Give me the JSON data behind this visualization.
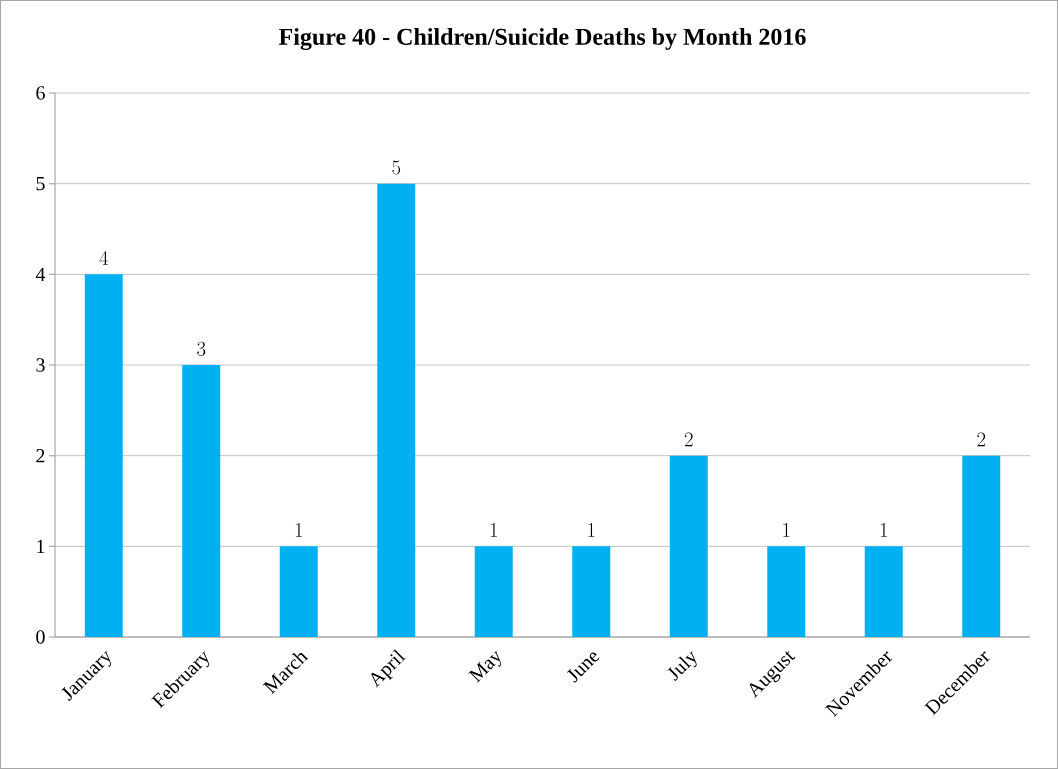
{
  "chart_data": {
    "type": "bar",
    "title": "Figure 40 - Children/Suicide Deaths by Month 2016",
    "categories": [
      "January",
      "February",
      "March",
      "April",
      "May",
      "June",
      "July",
      "August",
      "November",
      "December"
    ],
    "values": [
      4,
      3,
      1,
      5,
      1,
      1,
      2,
      1,
      1,
      2
    ],
    "color": "#00b0f0",
    "ylim": [
      0,
      6
    ],
    "yticks": [
      0,
      1,
      2,
      3,
      4,
      5,
      6
    ],
    "grid": "y",
    "data_labels": true
  }
}
